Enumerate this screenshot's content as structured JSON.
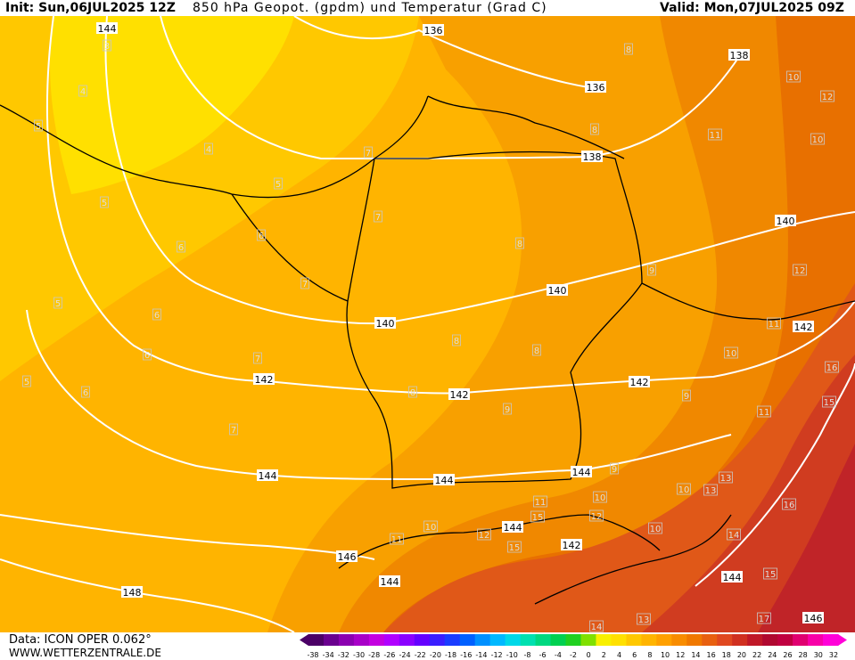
{
  "header": {
    "init": "Init: Sun,06JUL2025 12Z",
    "title": "850 hPa Geopot. (gpdm) und Temperatur (Grad C)",
    "valid": "Valid: Mon,07JUL2025 09Z"
  },
  "footer": {
    "data_label": "Data: ICON OPER 0.062°",
    "site": "WWW.WETTERZENTRALE.DE"
  },
  "legend": {
    "ticks": [
      "-38",
      "-34",
      "-32",
      "-30",
      "-28",
      "-26",
      "-24",
      "-22",
      "-20",
      "-18",
      "-16",
      "-14",
      "-12",
      "-10",
      "-8",
      "-6",
      "-4",
      "-2",
      "0",
      "2",
      "4",
      "6",
      "8",
      "10",
      "12",
      "14",
      "16",
      "18",
      "20",
      "22",
      "24",
      "26",
      "28",
      "30",
      "32"
    ],
    "colors": [
      "#4b0066",
      "#6a008f",
      "#8b00b0",
      "#a800c8",
      "#c400e0",
      "#b000ff",
      "#8a00ff",
      "#6400ff",
      "#3a1eff",
      "#1a3cff",
      "#0060ff",
      "#0090ff",
      "#00b8ff",
      "#00d8e8",
      "#00e0b0",
      "#00d880",
      "#00d050",
      "#20d020",
      "#80e000",
      "#f8f000",
      "#ffe000",
      "#ffc800",
      "#ffb400",
      "#ffa000",
      "#f88c00",
      "#f07800",
      "#e86010",
      "#e04820",
      "#d03020",
      "#c01828",
      "#b00830",
      "#c00040",
      "#e00070",
      "#f800a8",
      "#ff00d8"
    ]
  },
  "geopot_labels": [
    "144",
    "136",
    "138",
    "136",
    "138",
    "140",
    "140",
    "140",
    "142",
    "142",
    "142",
    "142",
    "144",
    "144",
    "144",
    "144",
    "146",
    "144",
    "148",
    "142",
    "144",
    "146"
  ],
  "temp_labels": [
    "3",
    "4",
    "4",
    "5",
    "5",
    "5",
    "5",
    "5",
    "6",
    "6",
    "6",
    "6",
    "6",
    "7",
    "7",
    "7",
    "7",
    "7",
    "8",
    "8",
    "8",
    "8",
    "8",
    "8",
    "9",
    "9",
    "9",
    "9",
    "10",
    "10",
    "10",
    "10",
    "10",
    "10",
    "10",
    "11",
    "11",
    "11",
    "11",
    "12",
    "12",
    "12",
    "13",
    "13",
    "14",
    "15",
    "15",
    "16",
    "16",
    "17",
    "13",
    "14",
    "15",
    "15",
    "11",
    "12"
  ],
  "map": {
    "colors": {
      "t3": "#ffe000",
      "t5": "#ffc800",
      "t7": "#ffb400",
      "t9": "#f8a000",
      "t11": "#f08800",
      "t13": "#e87000",
      "t15": "#e05818",
      "t17": "#d03c20",
      "t19": "#c02428",
      "t21": "#a81428",
      "isoline": "#ffffff",
      "border": "#000000"
    }
  }
}
